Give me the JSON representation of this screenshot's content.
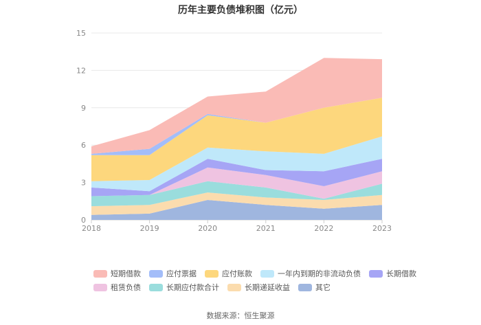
{
  "chart_data": {
    "type": "area",
    "stacked": true,
    "title": "历年主要负债堆积图（亿元）",
    "x": [
      "2018",
      "2019",
      "2020",
      "2021",
      "2022",
      "2023"
    ],
    "ylim": [
      0,
      15
    ],
    "yticks": [
      0,
      3,
      6,
      9,
      12,
      15
    ],
    "grid": true,
    "legend_position": "bottom",
    "series": [
      {
        "name": "其它",
        "color": "#9fb6df",
        "values": [
          0.4,
          0.5,
          1.6,
          1.2,
          0.9,
          1.2
        ]
      },
      {
        "name": "长期递延收益",
        "color": "#fbdcae",
        "values": [
          0.7,
          0.7,
          0.6,
          0.6,
          0.7,
          0.8
        ]
      },
      {
        "name": "长期应付款合计",
        "color": "#9adddd",
        "values": [
          0.8,
          0.8,
          0.9,
          0.8,
          0.1,
          0.9
        ]
      },
      {
        "name": "租赁负债",
        "color": "#efc3e1",
        "values": [
          0,
          0,
          1.1,
          1.0,
          1.0,
          1.0
        ]
      },
      {
        "name": "长期借款",
        "color": "#a6a5f5",
        "values": [
          0.7,
          0.3,
          0.7,
          0.4,
          1.2,
          1.0
        ]
      },
      {
        "name": "一年内到期的非流动负债",
        "color": "#bfe8fa",
        "values": [
          0.5,
          0.9,
          0.9,
          1.5,
          1.4,
          1.8
        ]
      },
      {
        "name": "应付账款",
        "color": "#fdd77d",
        "values": [
          2.1,
          2.0,
          2.6,
          2.3,
          3.7,
          3.1
        ]
      },
      {
        "name": "应付票据",
        "color": "#a3bdf9",
        "values": [
          0.1,
          0.5,
          0.1,
          0,
          0,
          0
        ]
      },
      {
        "name": "短期借款",
        "color": "#fabbb6",
        "values": [
          0.6,
          1.5,
          1.4,
          2.5,
          4.0,
          3.1
        ]
      }
    ]
  },
  "legend_rows": [
    [
      "短期借款",
      "应付票据",
      "应付账款",
      "一年内到期的非流动负债",
      "长期借款"
    ],
    [
      "租赁负债",
      "长期应付款合计",
      "长期递延收益",
      "其它"
    ]
  ],
  "source_text": "数据来源：恒生聚源"
}
